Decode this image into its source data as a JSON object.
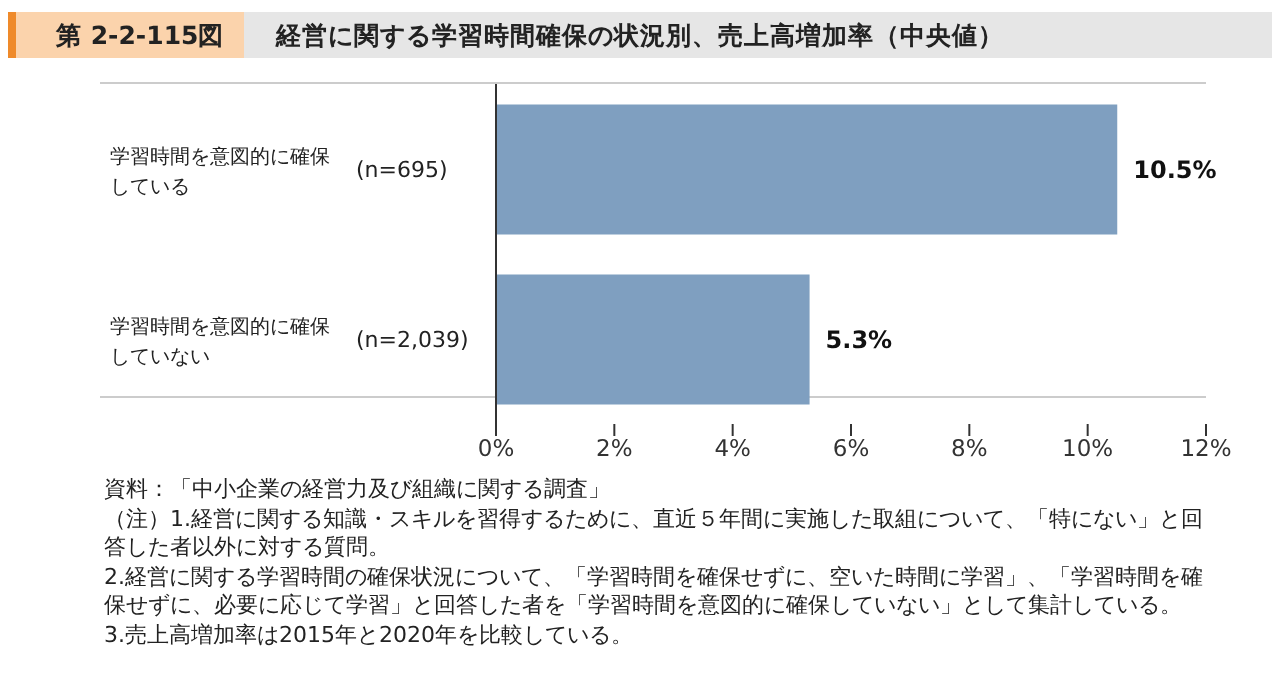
{
  "chart_data": {
    "type": "bar",
    "orientation": "horizontal",
    "subtitle": "第 2-2-115図",
    "title": "経営に関する学習時間確保の状況別、売上高増加率（中央値）",
    "categories": [
      "学習時間を意図的に確保している　(n=695)",
      "学習時間を意図的に確保していない　(n=2,039)"
    ],
    "values": [
      10.5,
      5.3
    ],
    "color": "#7f9fc0",
    "value_labels": [
      "10.5%",
      "5.3%"
    ],
    "xlim": [
      0,
      12
    ],
    "xticks": [
      {
        "value": 0,
        "label": "0%"
      },
      {
        "value": 2,
        "label": "2%"
      },
      {
        "value": 4,
        "label": "4%"
      },
      {
        "value": 6,
        "label": "6%"
      },
      {
        "value": 8,
        "label": "8%"
      },
      {
        "value": 10,
        "label": "10%"
      },
      {
        "value": 12,
        "label": "12%"
      }
    ],
    "grid": false,
    "legend": false,
    "annotations": [
      "資料：「中小企業の経営力及び組織に関する調査」",
      "（注）1.経営に関する知識・スキルを習得するために、直近５年間に実施した取組について、「特にない」と回答した者以外に対する質問。",
      "2.経営に関する学習時間の確保状況について、「学習時間を確保せずに、空いた時間に学習」、「学習時間を確保せずに、必要に応じて学習」と回答した者を「学習時間を意図的に確保していない」として集計している。",
      "3.売上高増加率は2015年と2020年を比較している。"
    ]
  }
}
